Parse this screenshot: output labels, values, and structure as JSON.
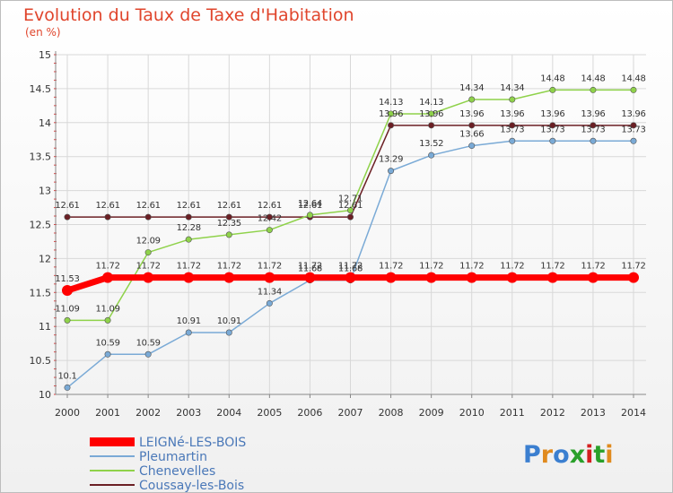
{
  "title": "Evolution du Taux de Taxe d'Habitation",
  "subtitle": "(en %)",
  "logo_text": "Proxiti",
  "chart_data": {
    "type": "line",
    "x": [
      2000,
      2001,
      2002,
      2003,
      2004,
      2005,
      2006,
      2007,
      2008,
      2009,
      2010,
      2011,
      2012,
      2013,
      2014
    ],
    "ylim": [
      10,
      15
    ],
    "yticks": [
      "10",
      "10.5",
      "11",
      "11.5",
      "12",
      "12.5",
      "13",
      "13.5",
      "14",
      "14.5",
      "15"
    ],
    "grid": true,
    "legend_position": "bottom-left",
    "series": [
      {
        "name": "Coussay-les-Bois",
        "color": "#6b1f24",
        "width": 1.5,
        "values": [
          12.61,
          12.61,
          12.61,
          12.61,
          12.61,
          12.61,
          12.61,
          12.61,
          13.96,
          13.96,
          13.96,
          13.96,
          13.96,
          13.96,
          13.96
        ],
        "labels": [
          "12.61",
          "12.61",
          "12.61",
          "12.61",
          "12.61",
          "12.61",
          "12.61",
          "12.61",
          "13.96",
          "13.96",
          "13.96",
          "13.96",
          "13.96",
          "13.96",
          "13.96"
        ]
      },
      {
        "name": "Chenevelles",
        "color": "#8fd24a",
        "width": 1.5,
        "values": [
          11.09,
          11.09,
          12.09,
          12.28,
          12.35,
          12.42,
          12.64,
          12.71,
          14.13,
          14.13,
          14.34,
          14.34,
          14.48,
          14.48,
          14.48
        ],
        "labels": [
          "11.09",
          "11.09",
          "12.09",
          "12.28",
          "12.35",
          "12.42",
          "12.64",
          "12.71",
          "14.13",
          "14.13",
          "14.34",
          "14.34",
          "14.48",
          "14.48",
          "14.48"
        ]
      },
      {
        "name": "Pleumartin",
        "color": "#7aaad6",
        "width": 1.5,
        "values": [
          10.1,
          10.59,
          10.59,
          10.91,
          10.91,
          11.34,
          11.68,
          11.68,
          13.29,
          13.52,
          13.66,
          13.73,
          13.73,
          13.73,
          13.73
        ],
        "labels": [
          "10.1",
          "10.59",
          "10.59",
          "10.91",
          "10.91",
          "11.34",
          "11.68",
          "11.68",
          "13.29",
          "13.52",
          "13.66",
          "13.73",
          "13.73",
          "13.73",
          "13.73"
        ]
      },
      {
        "name": "LEIGNé-LES-BOIS",
        "color": "#ff0000",
        "width": 7,
        "values": [
          11.53,
          11.72,
          11.72,
          11.72,
          11.72,
          11.72,
          11.72,
          11.72,
          11.72,
          11.72,
          11.72,
          11.72,
          11.72,
          11.72,
          11.72
        ],
        "labels": [
          "11.53",
          "11.72",
          "11.72",
          "11.72",
          "11.72",
          "11.72",
          "11.72",
          "11.72",
          "11.72",
          "11.72",
          "11.72",
          "11.72",
          "11.72",
          "11.72",
          "11.72"
        ]
      }
    ],
    "legend_order": [
      "LEIGNé-LES-BOIS",
      "Pleumartin",
      "Chenevelles",
      "Coussay-les-Bois"
    ]
  }
}
